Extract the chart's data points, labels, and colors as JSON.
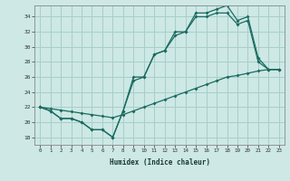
{
  "xlabel": "Humidex (Indice chaleur)",
  "bg_color": "#cde8e5",
  "grid_color": "#a8cec9",
  "line_color": "#1a6b60",
  "xlim": [
    -0.5,
    23.5
  ],
  "ylim": [
    17.0,
    35.5
  ],
  "xticks": [
    0,
    1,
    2,
    3,
    4,
    5,
    6,
    7,
    8,
    9,
    10,
    11,
    12,
    13,
    14,
    15,
    16,
    17,
    18,
    19,
    20,
    21,
    22,
    23
  ],
  "yticks": [
    18,
    20,
    22,
    24,
    26,
    28,
    30,
    32,
    34
  ],
  "line1_x": [
    0,
    1,
    2,
    3,
    4,
    5,
    6,
    7,
    8,
    9,
    10,
    11,
    12,
    13,
    14,
    15,
    16,
    17,
    18,
    19,
    20,
    21,
    22,
    23
  ],
  "line1_y": [
    22,
    21.5,
    20.5,
    20.5,
    20,
    19,
    19,
    18,
    21.5,
    26,
    26,
    29,
    29.5,
    32,
    32,
    34.5,
    34.5,
    35,
    35.5,
    33.5,
    34,
    28.5,
    27,
    27
  ],
  "line2_x": [
    0,
    1,
    2,
    3,
    4,
    5,
    6,
    7,
    8,
    9,
    10,
    11,
    12,
    13,
    14,
    15,
    16,
    17,
    18,
    19,
    20,
    21,
    22,
    23
  ],
  "line2_y": [
    22,
    21.5,
    20.5,
    20.5,
    20,
    19,
    19,
    18,
    21.5,
    25.5,
    26,
    29,
    29.5,
    31.5,
    32,
    34,
    34,
    34.5,
    34.5,
    33,
    33.5,
    28,
    27,
    27
  ],
  "line3_x": [
    0,
    1,
    2,
    3,
    4,
    5,
    6,
    7,
    8,
    9,
    10,
    11,
    12,
    13,
    14,
    15,
    16,
    17,
    18,
    19,
    20,
    21,
    22,
    23
  ],
  "line3_y": [
    22,
    21.8,
    21.6,
    21.4,
    21.2,
    21.0,
    20.8,
    20.6,
    21.0,
    21.5,
    22.0,
    22.5,
    23.0,
    23.5,
    24.0,
    24.5,
    25.0,
    25.5,
    26.0,
    26.2,
    26.5,
    26.8,
    27.0,
    27.0
  ]
}
